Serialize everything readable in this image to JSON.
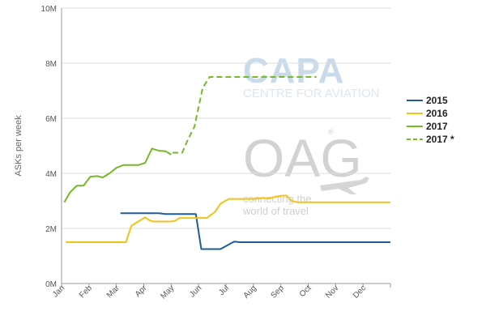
{
  "watermarks": {
    "capa_logo": "CAPA",
    "capa_sub": "CENTRE FOR AVIATION",
    "oag_logo": "OAG",
    "oag_line1": "connecting the",
    "oag_line2": "world of travel",
    "oag_registered": "®"
  },
  "chart_data": {
    "type": "line",
    "title": "",
    "xlabel": "",
    "ylabel": "ASKs per week",
    "ylim": [
      0,
      10000000
    ],
    "ytick_labels": [
      "0M",
      "2M",
      "4M",
      "6M",
      "8M",
      "10M"
    ],
    "ytick_values": [
      0,
      2000000,
      4000000,
      6000000,
      8000000,
      10000000
    ],
    "xlim": [
      0,
      12
    ],
    "xtick_labels": [
      "Jan",
      "Feb",
      "Mar",
      "Apr",
      "May",
      "Jun",
      "Jul",
      "Aug",
      "Sep",
      "Oct",
      "Nov",
      "Dec"
    ],
    "xtick_values": [
      0,
      1,
      2,
      3,
      4,
      5,
      6,
      7,
      8,
      9,
      10,
      11
    ],
    "grid": "horizontal",
    "legend_position": "right",
    "series": [
      {
        "name": "2015",
        "color": "#1f5c99",
        "dashed": false,
        "points": [
          [
            2.15,
            2.55
          ],
          [
            3.55,
            2.55
          ],
          [
            3.8,
            2.52
          ],
          [
            4.9,
            2.52
          ],
          [
            5.1,
            1.25
          ],
          [
            5.8,
            1.25
          ],
          [
            6.3,
            1.52
          ],
          [
            6.5,
            1.5
          ],
          [
            12,
            1.5
          ]
        ]
      },
      {
        "name": "2016",
        "color": "#f2c318",
        "dashed": false,
        "points": [
          [
            0.15,
            1.5
          ],
          [
            2.35,
            1.5
          ],
          [
            2.55,
            2.1
          ],
          [
            2.8,
            2.25
          ],
          [
            3.05,
            2.4
          ],
          [
            3.2,
            2.3
          ],
          [
            3.35,
            2.25
          ],
          [
            4.0,
            2.25
          ],
          [
            4.15,
            2.28
          ],
          [
            4.3,
            2.38
          ],
          [
            5.3,
            2.38
          ],
          [
            5.6,
            2.6
          ],
          [
            5.8,
            2.9
          ],
          [
            6.1,
            3.07
          ],
          [
            7.0,
            3.07
          ],
          [
            7.3,
            3.1
          ],
          [
            7.6,
            3.1
          ],
          [
            7.8,
            3.15
          ],
          [
            8.0,
            3.18
          ],
          [
            8.2,
            3.2
          ],
          [
            8.4,
            3.0
          ],
          [
            8.6,
            2.95
          ],
          [
            12,
            2.95
          ]
        ]
      },
      {
        "name": "2017",
        "color": "#76b82a",
        "dashed": false,
        "points": [
          [
            0.1,
            2.95
          ],
          [
            0.3,
            3.3
          ],
          [
            0.55,
            3.55
          ],
          [
            0.8,
            3.55
          ],
          [
            1.05,
            3.88
          ],
          [
            1.3,
            3.9
          ],
          [
            1.5,
            3.85
          ],
          [
            1.75,
            4.0
          ],
          [
            2.0,
            4.2
          ],
          [
            2.25,
            4.3
          ],
          [
            2.5,
            4.3
          ],
          [
            2.8,
            4.3
          ],
          [
            3.05,
            4.38
          ],
          [
            3.3,
            4.9
          ],
          [
            3.55,
            4.82
          ],
          [
            3.8,
            4.8
          ],
          [
            4.0,
            4.68
          ]
        ]
      },
      {
        "name": "2017 *",
        "color": "#76b82a",
        "dashed": true,
        "points": [
          [
            4.05,
            4.75
          ],
          [
            4.4,
            4.75
          ],
          [
            4.6,
            5.2
          ],
          [
            4.85,
            5.7
          ],
          [
            5.15,
            7.1
          ],
          [
            5.4,
            7.5
          ],
          [
            9.3,
            7.5
          ]
        ]
      }
    ]
  }
}
